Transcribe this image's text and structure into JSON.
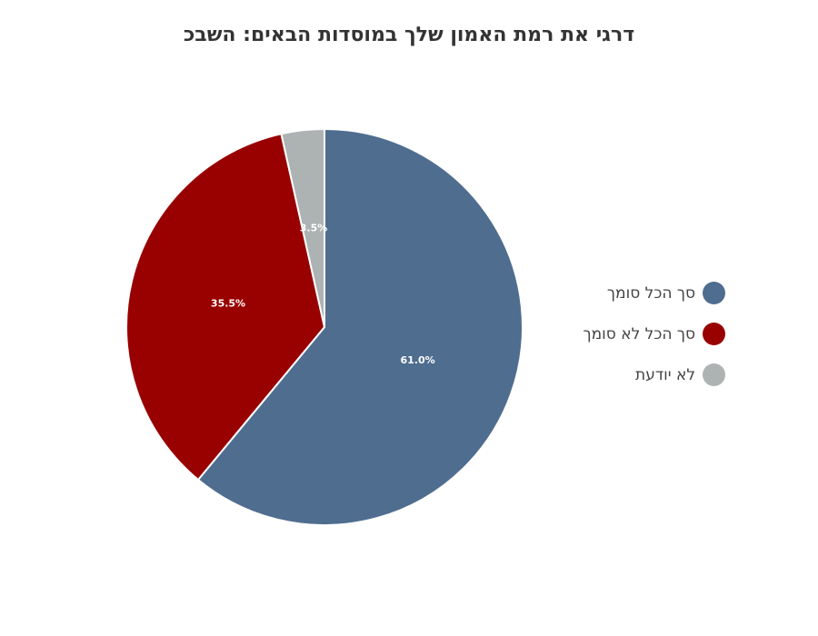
{
  "chart_data": {
    "type": "pie",
    "title": "דרגי את רמת האמון שלך במוסדות הבאים: השבכ",
    "categories": [
      "סך הכל סומך",
      "סך הכל לא סומך",
      "לא יודעת"
    ],
    "values": [
      61.0,
      35.5,
      3.5
    ],
    "data_labels": [
      "61.0%",
      "35.5%",
      "3.5%"
    ],
    "colors": [
      "#4f6d8f",
      "#990000",
      "#adb2b3"
    ],
    "legend_position": "right"
  }
}
